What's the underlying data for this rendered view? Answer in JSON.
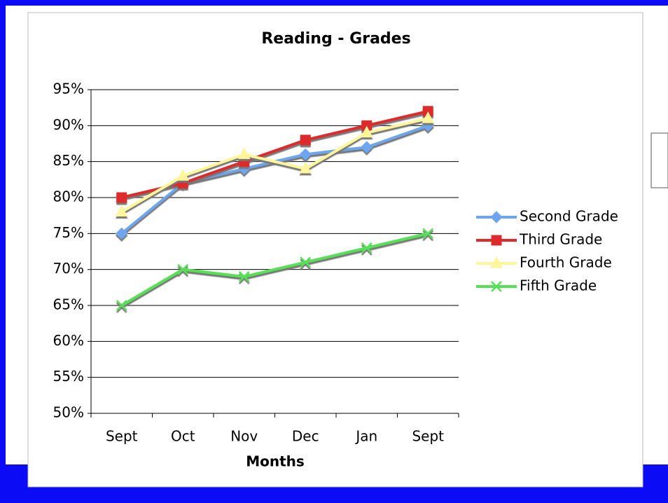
{
  "chart_data": {
    "type": "line",
    "title": "Reading - Grades",
    "x_label": "Months",
    "categories": [
      "Sept",
      "Oct",
      "Nov",
      "Dec",
      "Jan",
      "Sept"
    ],
    "series": [
      {
        "name": "Second Grade",
        "color": "#6ea6ee",
        "marker": "diamond",
        "values": [
          75,
          82,
          84,
          86,
          87,
          90
        ]
      },
      {
        "name": "Third Grade",
        "color": "#dd2b2b",
        "marker": "square",
        "values": [
          80,
          82,
          85,
          88,
          90,
          92
        ]
      },
      {
        "name": "Fourth Grade",
        "color": "#fff59a",
        "marker": "triangle",
        "values": [
          78,
          83,
          86,
          84,
          89,
          91
        ]
      },
      {
        "name": "Fifth Grade",
        "color": "#55e055",
        "marker": "x",
        "values": [
          65,
          70,
          69,
          71,
          73,
          75
        ]
      }
    ],
    "ylim": [
      50,
      95
    ],
    "yticks": [
      {
        "value": 50,
        "label": "50%"
      },
      {
        "value": 55,
        "label": "55%"
      },
      {
        "value": 60,
        "label": "60%"
      },
      {
        "value": 65,
        "label": "65%"
      },
      {
        "value": 70,
        "label": "70%"
      },
      {
        "value": 75,
        "label": "75%"
      },
      {
        "value": 80,
        "label": "80%"
      },
      {
        "value": 85,
        "label": "85%"
      },
      {
        "value": 90,
        "label": "90%"
      },
      {
        "value": 95,
        "label": "95%"
      }
    ],
    "grid": true,
    "legend": "right"
  }
}
